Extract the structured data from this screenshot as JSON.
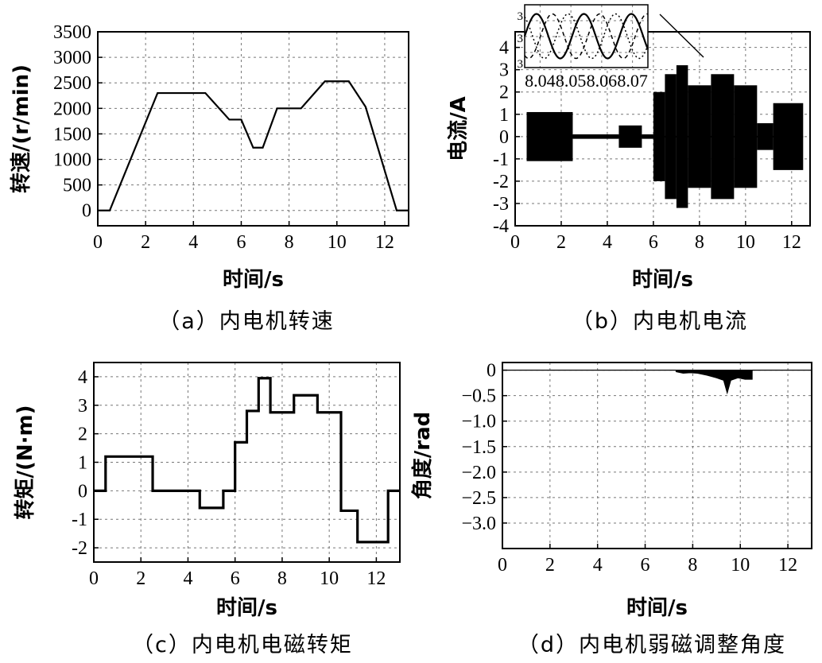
{
  "chart_data": [
    {
      "id": "a",
      "type": "line",
      "caption": "（a）内电机转速",
      "xlabel": "时间/s",
      "ylabel": "转速/(r/min)",
      "xlim": [
        0,
        13
      ],
      "ylim": [
        -300,
        3500
      ],
      "xticks": [
        0,
        2,
        4,
        6,
        8,
        10,
        12
      ],
      "yticks": [
        0,
        500,
        1000,
        1500,
        2000,
        2500,
        3000,
        3500
      ],
      "grid": true,
      "series": [
        {
          "x": [
            0,
            0.5,
            2.5,
            4.5,
            5.5,
            6,
            6.5,
            6.9,
            7.5,
            8.5,
            9.5,
            10.5,
            11.2,
            12.5,
            13
          ],
          "y": [
            0,
            0,
            2300,
            2300,
            1780,
            1780,
            1230,
            1230,
            2000,
            2000,
            2530,
            2530,
            2030,
            0,
            0
          ]
        }
      ]
    },
    {
      "id": "b",
      "type": "area",
      "caption": "（b）内电机电流",
      "xlabel": "时间/s",
      "ylabel": "电流/A",
      "xlim": [
        0,
        12.8
      ],
      "ylim": [
        -4,
        4.7
      ],
      "xticks": [
        0,
        2,
        4,
        6,
        8,
        10,
        12
      ],
      "yticks": [
        -4,
        -3,
        -2,
        -1,
        0,
        1,
        2,
        3,
        4
      ],
      "grid": true,
      "envelope": [
        {
          "x0": 0.5,
          "x1": 2.5,
          "amp": 1.1
        },
        {
          "x0": 2.5,
          "x1": 4.5,
          "amp": 0.1
        },
        {
          "x0": 4.5,
          "x1": 5.5,
          "amp": 0.5
        },
        {
          "x0": 5.5,
          "x1": 6.0,
          "amp": 0.1
        },
        {
          "x0": 6.0,
          "x1": 6.5,
          "amp": 2.0
        },
        {
          "x0": 6.5,
          "x1": 7.0,
          "amp": 2.8
        },
        {
          "x0": 7.0,
          "x1": 7.5,
          "amp": 3.2
        },
        {
          "x0": 7.5,
          "x1": 8.5,
          "amp": 2.3
        },
        {
          "x0": 8.5,
          "x1": 9.5,
          "amp": 2.8
        },
        {
          "x0": 9.5,
          "x1": 10.5,
          "amp": 2.3
        },
        {
          "x0": 10.5,
          "x1": 11.2,
          "amp": 0.6
        },
        {
          "x0": 11.2,
          "x1": 12.5,
          "amp": 1.5
        }
      ],
      "inset": {
        "xlim": [
          8.035,
          8.075
        ],
        "xticks": [
          8.04,
          8.05,
          8.06,
          8.07
        ],
        "yticks": [
          "3",
          "3",
          "3"
        ]
      }
    },
    {
      "id": "c",
      "type": "line",
      "caption": "（c）内电机电磁转矩",
      "xlabel": "时间/s",
      "ylabel": "转矩/(N·m)",
      "xlim": [
        0,
        13
      ],
      "ylim": [
        -2.5,
        4.5
      ],
      "xticks": [
        0,
        2,
        4,
        6,
        8,
        10,
        12
      ],
      "yticks": [
        -2,
        -1,
        0,
        1,
        2,
        3,
        4
      ],
      "grid": true,
      "series": [
        {
          "x": [
            0,
            0.5,
            0.5,
            2.5,
            2.5,
            4.5,
            4.5,
            5.5,
            5.5,
            6,
            6,
            6.5,
            6.5,
            7,
            7,
            7.5,
            7.5,
            8.5,
            8.5,
            9.5,
            9.5,
            10.5,
            10.5,
            11.2,
            11.2,
            12.5,
            12.5,
            13
          ],
          "y": [
            0,
            0,
            1.2,
            1.2,
            0,
            0,
            -0.6,
            -0.6,
            0,
            0,
            1.7,
            1.7,
            2.8,
            2.8,
            3.95,
            3.95,
            2.75,
            2.75,
            3.35,
            3.35,
            2.75,
            2.75,
            -0.7,
            -0.7,
            -1.8,
            -1.8,
            0,
            0
          ]
        }
      ]
    },
    {
      "id": "d",
      "type": "area",
      "caption": "（d）内电机弱磁调整角度",
      "xlabel": "时间/s",
      "ylabel": "角度/rad",
      "xlim": [
        0,
        13
      ],
      "ylim": [
        -3.5,
        0.15
      ],
      "xticks": [
        0,
        2,
        4,
        6,
        8,
        10,
        12
      ],
      "yticks": [
        0,
        -0.5,
        -1.0,
        -1.5,
        -2.0,
        -2.5,
        -3.0
      ],
      "ytick_labels": [
        "0",
        "−0.5",
        "−1.0",
        "−1.5",
        "−2.0",
        "−2.5",
        "−3.0"
      ],
      "grid": true,
      "series": [
        {
          "x": [
            7.3,
            7.6,
            7.9,
            8.2,
            8.6,
            9.0,
            9.3,
            9.45,
            9.6,
            9.9,
            10.2,
            10.5
          ],
          "y": [
            -0.03,
            -0.06,
            -0.05,
            -0.06,
            -0.1,
            -0.15,
            -0.2,
            -0.45,
            -0.2,
            -0.15,
            -0.18,
            -0.18
          ]
        }
      ]
    }
  ]
}
